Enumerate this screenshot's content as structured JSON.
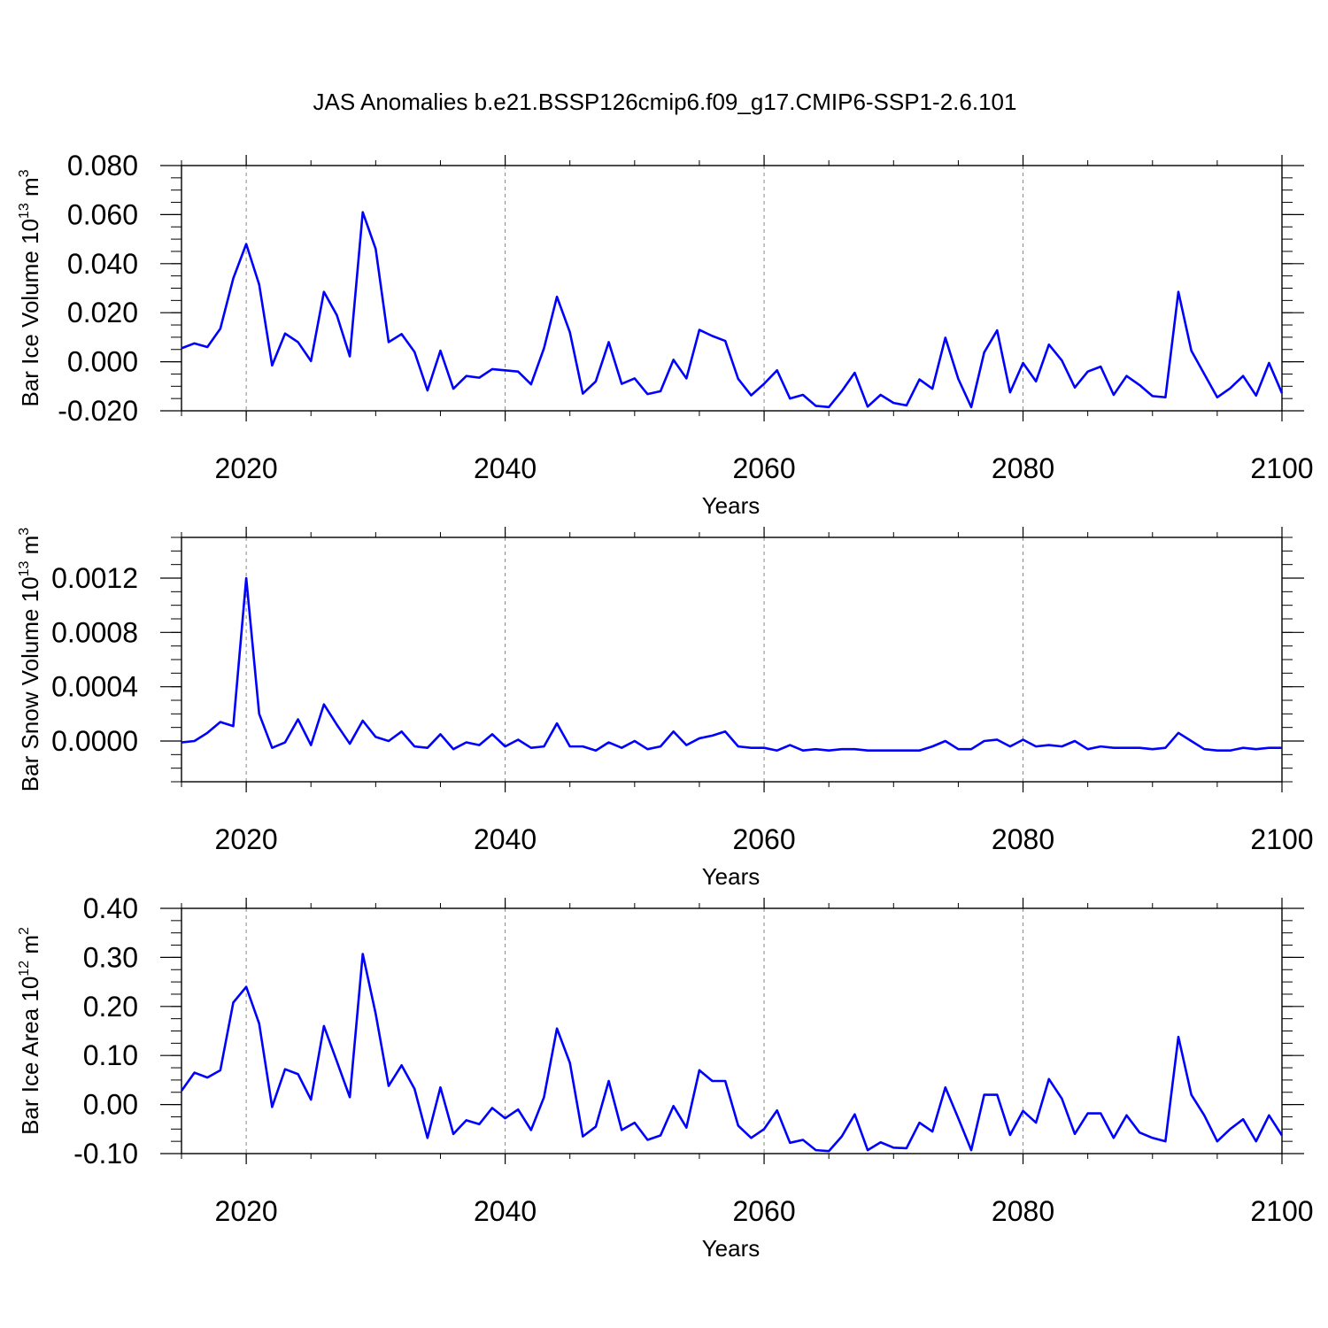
{
  "title": "JAS Anomalies b.e21.BSSP126cmip6.f09_g17.CMIP6-SSP1-2.6.101",
  "colors": {
    "line": "#0000ff",
    "axis": "#000000",
    "grid": "#888888"
  },
  "chart_data": [
    {
      "type": "line",
      "xlabel": "Years",
      "ylabel": {
        "text": "Bar Ice Volume 10",
        "sup": "13",
        "unit": " m",
        "unit_sup": "3"
      },
      "xlim": [
        2015,
        2100
      ],
      "ylim": [
        -0.02,
        0.08
      ],
      "xticks": [
        "2020",
        "2040",
        "2060",
        "2080",
        "2100"
      ],
      "yticks": [
        "-0.020",
        "0.000",
        "0.020",
        "0.040",
        "0.060",
        "0.080"
      ],
      "grid": "dashed vertical at major x ticks",
      "x": [
        2015,
        2016,
        2017,
        2018,
        2019,
        2020,
        2021,
        2022,
        2023,
        2024,
        2025,
        2026,
        2027,
        2028,
        2029,
        2030,
        2031,
        2032,
        2033,
        2034,
        2035,
        2036,
        2037,
        2038,
        2039,
        2040,
        2041,
        2042,
        2043,
        2044,
        2045,
        2046,
        2047,
        2048,
        2049,
        2050,
        2051,
        2052,
        2053,
        2054,
        2055,
        2056,
        2057,
        2058,
        2059,
        2060,
        2061,
        2062,
        2063,
        2064,
        2065,
        2066,
        2067,
        2068,
        2069,
        2070,
        2071,
        2072,
        2073,
        2074,
        2075,
        2076,
        2077,
        2078,
        2079,
        2080,
        2081,
        2082,
        2083,
        2084,
        2085,
        2086,
        2087,
        2088,
        2089,
        2090,
        2091,
        2092,
        2093,
        2094,
        2095,
        2096,
        2097,
        2098,
        2099,
        2100
      ],
      "values": [
        0.0055,
        0.0075,
        0.006,
        0.0135,
        0.034,
        0.048,
        0.0315,
        -0.0015,
        0.0115,
        0.008,
        0.0003,
        0.0285,
        0.019,
        0.0022,
        0.061,
        0.046,
        0.008,
        0.0113,
        0.004,
        -0.0117,
        0.0045,
        -0.011,
        -0.0058,
        -0.0065,
        -0.003,
        -0.0035,
        -0.004,
        -0.0092,
        0.0055,
        0.0265,
        0.012,
        -0.013,
        -0.008,
        0.008,
        -0.009,
        -0.0068,
        -0.0132,
        -0.012,
        0.0008,
        -0.0068,
        0.013,
        0.0105,
        0.0085,
        -0.007,
        -0.0137,
        -0.009,
        -0.0035,
        -0.015,
        -0.0135,
        -0.018,
        -0.0185,
        -0.012,
        -0.0045,
        -0.0183,
        -0.0135,
        -0.0168,
        -0.0178,
        -0.0072,
        -0.011,
        0.0098,
        -0.007,
        -0.0185,
        0.0038,
        0.0128,
        -0.0125,
        -0.0005,
        -0.008,
        0.007,
        0.0005,
        -0.0105,
        -0.004,
        -0.002,
        -0.0135,
        -0.0058,
        -0.0095,
        -0.014,
        -0.0145,
        0.0285,
        0.0045,
        -0.005,
        -0.0145,
        -0.0108,
        -0.0058,
        -0.0138,
        -0.0005,
        -0.0128
      ]
    },
    {
      "type": "line",
      "xlabel": "Years",
      "ylabel": {
        "text": "Bar Snow Volume 10",
        "sup": "13",
        "unit": " m",
        "unit_sup": "3"
      },
      "xlim": [
        2015,
        2100
      ],
      "ylim": [
        -0.0003,
        0.0015
      ],
      "xticks": [
        "2020",
        "2040",
        "2060",
        "2080",
        "2100"
      ],
      "yticks": [
        "0.0000",
        "0.0004",
        "0.0008",
        "0.0012"
      ],
      "grid": "dashed vertical at major x ticks",
      "x": [
        2015,
        2016,
        2017,
        2018,
        2019,
        2020,
        2021,
        2022,
        2023,
        2024,
        2025,
        2026,
        2027,
        2028,
        2029,
        2030,
        2031,
        2032,
        2033,
        2034,
        2035,
        2036,
        2037,
        2038,
        2039,
        2040,
        2041,
        2042,
        2043,
        2044,
        2045,
        2046,
        2047,
        2048,
        2049,
        2050,
        2051,
        2052,
        2053,
        2054,
        2055,
        2056,
        2057,
        2058,
        2059,
        2060,
        2061,
        2062,
        2063,
        2064,
        2065,
        2066,
        2067,
        2068,
        2069,
        2070,
        2071,
        2072,
        2073,
        2074,
        2075,
        2076,
        2077,
        2078,
        2079,
        2080,
        2081,
        2082,
        2083,
        2084,
        2085,
        2086,
        2087,
        2088,
        2089,
        2090,
        2091,
        2092,
        2093,
        2094,
        2095,
        2096,
        2097,
        2098,
        2099,
        2100
      ],
      "values": [
        -1e-05,
        0.0,
        6e-05,
        0.00014,
        0.00011,
        0.0012,
        0.0002,
        -5e-05,
        -1e-05,
        0.00016,
        -3e-05,
        0.00027,
        0.00012,
        -2e-05,
        0.00015,
        3e-05,
        0.0,
        7e-05,
        -4e-05,
        -5e-05,
        5e-05,
        -6e-05,
        -1e-05,
        -3e-05,
        5e-05,
        -4e-05,
        1e-05,
        -5e-05,
        -4e-05,
        0.00013,
        -4e-05,
        -4e-05,
        -7e-05,
        -1e-05,
        -5e-05,
        0.0,
        -6e-05,
        -4e-05,
        7e-05,
        -3e-05,
        2e-05,
        4e-05,
        7e-05,
        -4e-05,
        -5e-05,
        -5e-05,
        -7e-05,
        -3e-05,
        -7e-05,
        -6e-05,
        -7e-05,
        -6e-05,
        -6e-05,
        -7e-05,
        -7e-05,
        -7e-05,
        -7e-05,
        -7e-05,
        -4e-05,
        0.0,
        -6e-05,
        -6e-05,
        0.0,
        1e-05,
        -4e-05,
        1e-05,
        -4e-05,
        -3e-05,
        -4e-05,
        0.0,
        -6e-05,
        -4e-05,
        -5e-05,
        -5e-05,
        -5e-05,
        -6e-05,
        -5e-05,
        6e-05,
        0.0,
        -6e-05,
        -7e-05,
        -7e-05,
        -5e-05,
        -6e-05,
        -5e-05,
        -5e-05
      ]
    },
    {
      "type": "line",
      "xlabel": "Years",
      "ylabel": {
        "text": "Bar Ice Area 10",
        "sup": "12",
        "unit": " m",
        "unit_sup": "2"
      },
      "xlim": [
        2015,
        2100
      ],
      "ylim": [
        -0.1,
        0.4
      ],
      "xticks": [
        "2020",
        "2040",
        "2060",
        "2080",
        "2100"
      ],
      "yticks": [
        "-0.10",
        "0.00",
        "0.10",
        "0.20",
        "0.30",
        "0.40"
      ],
      "grid": "dashed vertical at major x ticks",
      "x": [
        2015,
        2016,
        2017,
        2018,
        2019,
        2020,
        2021,
        2022,
        2023,
        2024,
        2025,
        2026,
        2027,
        2028,
        2029,
        2030,
        2031,
        2032,
        2033,
        2034,
        2035,
        2036,
        2037,
        2038,
        2039,
        2040,
        2041,
        2042,
        2043,
        2044,
        2045,
        2046,
        2047,
        2048,
        2049,
        2050,
        2051,
        2052,
        2053,
        2054,
        2055,
        2056,
        2057,
        2058,
        2059,
        2060,
        2061,
        2062,
        2063,
        2064,
        2065,
        2066,
        2067,
        2068,
        2069,
        2070,
        2071,
        2072,
        2073,
        2074,
        2075,
        2076,
        2077,
        2078,
        2079,
        2080,
        2081,
        2082,
        2083,
        2084,
        2085,
        2086,
        2087,
        2088,
        2089,
        2090,
        2091,
        2092,
        2093,
        2094,
        2095,
        2096,
        2097,
        2098,
        2099,
        2100
      ],
      "values": [
        0.028,
        0.065,
        0.055,
        0.07,
        0.208,
        0.24,
        0.165,
        -0.005,
        0.072,
        0.062,
        0.01,
        0.16,
        0.088,
        0.015,
        0.307,
        0.185,
        0.038,
        0.08,
        0.032,
        -0.068,
        0.035,
        -0.06,
        -0.032,
        -0.04,
        -0.007,
        -0.028,
        -0.01,
        -0.052,
        0.015,
        0.155,
        0.085,
        -0.065,
        -0.045,
        0.048,
        -0.052,
        -0.037,
        -0.072,
        -0.063,
        -0.003,
        -0.047,
        0.07,
        0.048,
        0.048,
        -0.043,
        -0.068,
        -0.05,
        -0.012,
        -0.078,
        -0.072,
        -0.093,
        -0.095,
        -0.065,
        -0.02,
        -0.093,
        -0.077,
        -0.088,
        -0.089,
        -0.037,
        -0.055,
        0.035,
        -0.028,
        -0.093,
        0.02,
        0.02,
        -0.062,
        -0.013,
        -0.037,
        0.052,
        0.012,
        -0.06,
        -0.018,
        -0.018,
        -0.068,
        -0.022,
        -0.057,
        -0.068,
        -0.075,
        0.138,
        0.02,
        -0.022,
        -0.075,
        -0.05,
        -0.03,
        -0.075,
        -0.022,
        -0.063
      ]
    }
  ]
}
